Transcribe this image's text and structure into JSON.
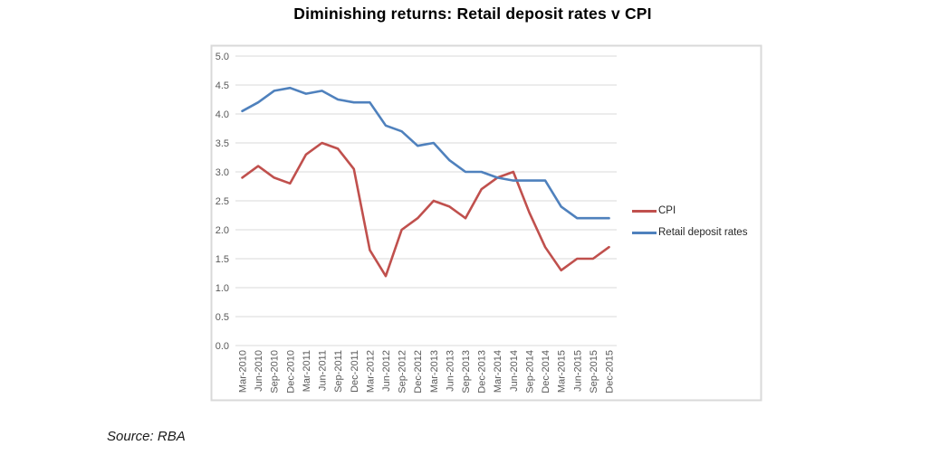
{
  "chart_data": {
    "type": "line",
    "title": "Diminishing returns: Retail deposit rates v CPI",
    "categories": [
      "Mar-2010",
      "Jun-2010",
      "Sep-2010",
      "Dec-2010",
      "Mar-2011",
      "Jun-2011",
      "Sep-2011",
      "Dec-2011",
      "Mar-2012",
      "Jun-2012",
      "Sep-2012",
      "Dec-2012",
      "Mar-2013",
      "Jun-2013",
      "Sep-2013",
      "Dec-2013",
      "Mar-2014",
      "Jun-2014",
      "Sep-2014",
      "Dec-2014",
      "Mar-2015",
      "Jun-2015",
      "Sep-2015",
      "Dec-2015"
    ],
    "series": [
      {
        "name": "CPI",
        "color": "#C0504D",
        "values": [
          2.9,
          3.1,
          2.9,
          2.8,
          3.3,
          3.5,
          3.4,
          3.05,
          1.65,
          1.2,
          2.0,
          2.2,
          2.5,
          2.4,
          2.2,
          2.7,
          2.9,
          3.0,
          2.3,
          1.7,
          1.3,
          1.5,
          1.5,
          1.7
        ]
      },
      {
        "name": "Retail deposit rates",
        "color": "#4F81BD",
        "values": [
          4.05,
          4.2,
          4.4,
          4.45,
          4.35,
          4.4,
          4.25,
          4.2,
          4.2,
          3.8,
          3.7,
          3.45,
          3.5,
          3.2,
          3.0,
          3.0,
          2.9,
          2.85,
          2.85,
          2.85,
          2.4,
          2.2,
          2.2,
          2.2
        ]
      }
    ],
    "ylim": [
      0.0,
      5.0
    ],
    "yticks": [
      "0.0",
      "0.5",
      "1.0",
      "1.5",
      "2.0",
      "2.5",
      "3.0",
      "3.5",
      "4.0",
      "4.5",
      "5.0"
    ],
    "xlabel": "",
    "ylabel": "",
    "grid": true,
    "legend_position": "right-middle",
    "colors": {
      "gridline": "#D9D9D9",
      "axis_labels": "#595959",
      "chart_border": "#D9D9D9",
      "title": "#000000",
      "legend_text": "#262626"
    }
  },
  "footer": {
    "source": "Source: RBA"
  }
}
